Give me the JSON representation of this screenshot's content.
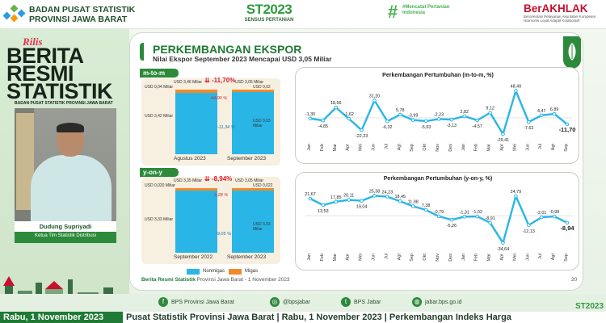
{
  "header": {
    "org_line1": "BADAN PUSAT STATISTIK",
    "org_line2": "PROVINSI JAWA BARAT",
    "st_big": "ST2023",
    "st_small": "SENSUS PERTANIAN",
    "mencatat": "#Mencatat Pertanian Indonesia",
    "akhlak": "BerAKHLAK",
    "akhlak_sub": "Berorientasi Pelayanan Akuntabel Kompeten Harmonis Loyal Adaptif Kolaboratif"
  },
  "left": {
    "rilis": "Rilis",
    "berita_lines": [
      "BERITA",
      "RESMI",
      "STATISTIK"
    ],
    "subtitle": "BADAN PUSAT STATISTIK PROVINSI JAWA BARAT",
    "speaker_name": "Dudung Supriyadi",
    "speaker_role": "Ketua Tim Statistik Distribusi"
  },
  "slide": {
    "title": "PERKEMBANGAN EKSPOR",
    "subtitle": "Nilai Ekspor September 2023 Mencapai USD 3,05 Miliar",
    "mtm": {
      "tag": "m-to-m",
      "change": "-11,70%",
      "left_top": "USD 3,46 Miliar",
      "right_top": "USD 3,05 Miliar",
      "migas_left": "USD 0,04 Miliar",
      "migas_right": "USD 0,02 Miliar",
      "nonmigas_left": "USD 3,42 Miliar",
      "nonmigas_right": "USD 3,03 Miliar",
      "migas_pct": "-44,00 %",
      "nonmigas_pct": "-11,34 %",
      "cat_left": "Agustus 2023",
      "cat_right": "September 2023"
    },
    "yoy": {
      "tag": "y-on-y",
      "change": "-8,94%",
      "left_top": "USD 3,35 Miliar",
      "right_top": "USD 3,05 Miliar",
      "migas_left": "USD 0,020 Miliar",
      "migas_right": "USD 0,022 Miliar",
      "nonmigas_left": "USD 3,33 Miliar",
      "nonmigas_right": "USD 3,03 Miliar",
      "migas_pct": "9,28 %",
      "nonmigas_pct": "-9,05 %",
      "cat_left": "September 2022",
      "cat_right": "September 2023"
    },
    "legend": {
      "nonmigas": "Nonmigas",
      "migas": "Migas"
    },
    "footer": "Berita Resmi Statistik",
    "footer_rest": "Provinsi Jawa Barat  -  1 November 2023",
    "page": "20"
  },
  "chart_data": [
    {
      "type": "line",
      "title": "Perkembangan Pertumbuhan (m-to-m, %)",
      "categories": [
        "Jan",
        "Feb",
        "Mar",
        "Apr",
        "Mei",
        "Jun",
        "Jul",
        "Agt",
        "Sep",
        "Okt",
        "Nov",
        "Des",
        "Jan",
        "Feb",
        "Mar",
        "Apr",
        "Mei",
        "Jun",
        "Jul",
        "Agt",
        "Sep"
      ],
      "values": [
        -1.3,
        -4.85,
        18.56,
        -1.62,
        -22.23,
        31.2,
        -6.32,
        5.78,
        -3.99,
        -5.93,
        -2.23,
        -3.13,
        2.82,
        -4.57,
        9.12,
        -29.41,
        48.49,
        -7.62,
        4.47,
        6.89,
        -11.7
      ],
      "labels": [
        "-1,30",
        "-4,85",
        "18,56",
        "-1,62",
        "-22,23",
        "31,20",
        "-6,32",
        "5,78",
        "-3,99",
        "-5,93",
        "-2,23",
        "-3,13",
        "2,82",
        "-4,57",
        "9,12",
        "-29,41",
        "48,49",
        "-7,62",
        "4,47",
        "6,89",
        "-11,70"
      ],
      "ylim": [
        -35,
        55
      ],
      "color": "#29b6e6"
    },
    {
      "type": "line",
      "title": "Perkembangan Pertumbuhan (y-on-y, %)",
      "categories": [
        "Jan",
        "Feb",
        "Mar",
        "Apr",
        "Mei",
        "Jun",
        "Jul",
        "Agt",
        "Sep",
        "Okt",
        "Nov",
        "Des",
        "Jan",
        "Feb",
        "Mar",
        "Apr",
        "Mei",
        "Jun",
        "Jul",
        "Agt",
        "Sep"
      ],
      "values": [
        21.67,
        13.53,
        17.85,
        20.11,
        19.04,
        25.38,
        24.23,
        18.45,
        11.98,
        7.38,
        -0.79,
        -5.26,
        -1.31,
        -1.02,
        -8.91,
        -34.64,
        24.79,
        -12.13,
        -2.01,
        -0.99,
        -8.94
      ],
      "labels": [
        "21,67",
        "13,53",
        "17,85",
        "20,11",
        "19,04",
        "25,38",
        "24,23",
        "18,45",
        "11,98",
        "7,38",
        "-0,79",
        "-5,26",
        "-1,31",
        "-1,02",
        "-8,91",
        "-34,64",
        "24,79",
        "-12,13",
        "-2,01",
        "-0,99",
        "-8,94"
      ],
      "ylim": [
        -40,
        32
      ],
      "color": "#29b6e6"
    }
  ],
  "social": {
    "fb": "BPS Provinsi Jawa Barat",
    "ig": "@bpsjabar",
    "tw": "BPS Jabar",
    "web": "jabar.bps.go.id"
  },
  "ticker": {
    "left": "Rabu, 1 November 2023",
    "text": "Pusat Statistik Provinsi Jawa Barat | Rabu, 1 November 2023 | Perkembangan Indeks Harga"
  }
}
